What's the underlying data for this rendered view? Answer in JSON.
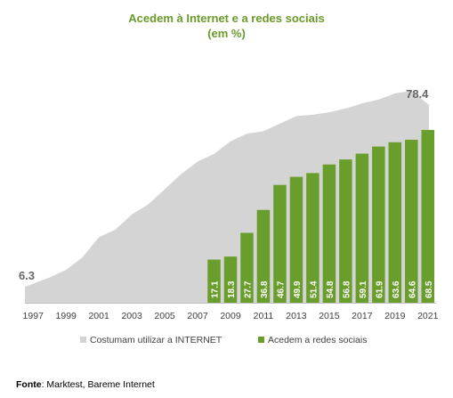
{
  "chart_data": {
    "type": "bar",
    "title": "Acedem à Internet e a redes sociais",
    "subtitle": "(em %)",
    "x_tick_labels": [
      "1997",
      "1999",
      "2001",
      "2003",
      "2005",
      "2007",
      "2009",
      "2011",
      "2013",
      "2015",
      "2017",
      "2019",
      "2021"
    ],
    "area_series": {
      "name": "Costumam utilizar a INTERNET",
      "color": "#d4d4d4",
      "x": [
        1997,
        1998,
        1999,
        2000,
        2001,
        2002,
        2003,
        2004,
        2005,
        2006,
        2007,
        2008,
        2009,
        2010,
        2011,
        2012,
        2013,
        2014,
        2015,
        2016,
        2017,
        2018,
        2019,
        2020,
        2021
      ],
      "values": [
        6.3,
        10,
        13,
        18,
        26,
        29,
        35,
        39,
        45,
        51,
        56,
        59,
        64,
        67,
        68,
        71,
        74,
        74.5,
        75.5,
        77,
        79,
        80.5,
        83,
        84,
        78.4
      ],
      "labeled_points": [
        {
          "x": 1997,
          "label": "6.3"
        },
        {
          "x": 2021,
          "label": "78.4"
        }
      ]
    },
    "bar_series": {
      "name": "Acedem a redes sociais",
      "color": "#6a9e2c",
      "x": [
        2008,
        2009,
        2010,
        2011,
        2012,
        2013,
        2014,
        2015,
        2016,
        2017,
        2018,
        2019,
        2020,
        2021
      ],
      "values": [
        17.1,
        18.3,
        27.7,
        36.8,
        46.7,
        49.9,
        51.4,
        54.8,
        56.8,
        59.1,
        61.9,
        63.6,
        64.6,
        68.5
      ],
      "labels": [
        "17.1",
        "18.3",
        "27.7",
        "36.8",
        "46.7",
        "49.9",
        "51.4",
        "54.8",
        "56.8",
        "59.1",
        "61.9",
        "63.6",
        "64.6",
        "68.5"
      ]
    },
    "legend_position": "bottom",
    "grid": false
  },
  "source": {
    "label": "Fonte",
    "text": ": Marktest, Bareme Internet"
  }
}
